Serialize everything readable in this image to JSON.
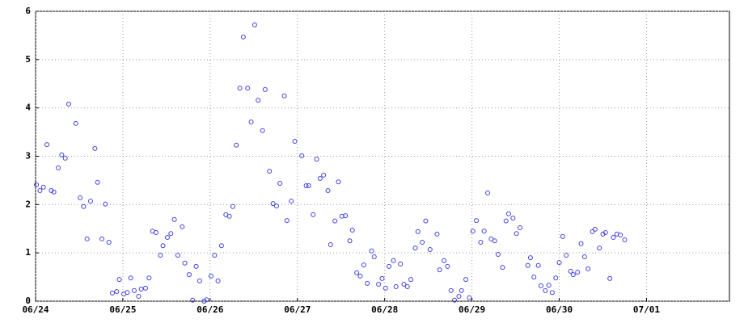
{
  "chart_data": {
    "type": "scatter",
    "x": [
      0.01,
      0.05,
      0.09,
      0.13,
      0.18,
      0.21,
      0.26,
      0.3,
      0.34,
      0.38,
      0.46,
      0.51,
      0.55,
      0.59,
      0.63,
      0.68,
      0.71,
      0.76,
      0.8,
      0.84,
      0.88,
      0.93,
      0.96,
      1.01,
      1.05,
      1.09,
      1.13,
      1.18,
      1.21,
      1.26,
      1.3,
      1.34,
      1.38,
      1.43,
      1.46,
      1.51,
      1.55,
      1.59,
      1.63,
      1.68,
      1.71,
      1.76,
      1.8,
      1.84,
      1.88,
      1.93,
      1.96,
      2.01,
      2.05,
      2.09,
      2.13,
      2.18,
      2.22,
      2.26,
      2.3,
      2.34,
      2.38,
      2.43,
      2.47,
      2.51,
      2.55,
      2.6,
      2.63,
      2.68,
      2.72,
      2.76,
      2.8,
      2.85,
      2.88,
      2.93,
      2.97,
      3.05,
      3.1,
      3.13,
      3.18,
      3.22,
      3.26,
      3.3,
      3.35,
      3.38,
      3.43,
      3.47,
      3.51,
      3.55,
      3.6,
      3.63,
      3.68,
      3.72,
      3.76,
      3.8,
      3.85,
      3.88,
      3.93,
      3.97,
      4.01,
      4.05,
      4.1,
      4.13,
      4.18,
      4.22,
      4.26,
      4.3,
      4.35,
      4.38,
      4.43,
      4.47,
      4.52,
      4.6,
      4.63,
      4.68,
      4.72,
      4.76,
      4.8,
      4.85,
      4.88,
      4.93,
      4.97,
      5.01,
      5.05,
      5.1,
      5.14,
      5.18,
      5.22,
      5.26,
      5.3,
      5.35,
      5.39,
      5.42,
      5.47,
      5.51,
      5.55,
      5.64,
      5.67,
      5.71,
      5.76,
      5.79,
      5.84,
      5.88,
      5.92,
      5.96,
      6.0,
      6.04,
      6.08,
      6.13,
      6.16,
      6.21,
      6.25,
      6.29,
      6.33,
      6.38,
      6.41,
      6.46,
      6.5,
      6.53,
      6.58,
      6.62,
      6.66,
      6.7,
      6.75
    ],
    "values": [
      2.41,
      2.29,
      2.36,
      3.24,
      2.29,
      2.26,
      2.76,
      3.03,
      2.96,
      4.08,
      3.68,
      2.14,
      1.96,
      1.29,
      2.07,
      3.16,
      2.46,
      1.29,
      2.01,
      1.22,
      0.17,
      0.2,
      0.45,
      0.15,
      0.18,
      0.48,
      0.22,
      0.1,
      0.25,
      0.27,
      0.48,
      1.45,
      1.42,
      0.95,
      1.15,
      1.32,
      1.4,
      1.69,
      0.95,
      1.54,
      0.79,
      0.55,
      0.02,
      0.72,
      0.42,
      0.0,
      0.03,
      0.52,
      0.95,
      0.42,
      1.15,
      1.79,
      1.76,
      1.96,
      3.23,
      4.41,
      5.47,
      4.41,
      3.71,
      5.72,
      4.16,
      3.53,
      4.38,
      2.69,
      2.02,
      1.97,
      2.44,
      4.25,
      1.67,
      2.07,
      3.31,
      3.01,
      2.39,
      2.39,
      1.79,
      2.94,
      2.54,
      2.61,
      2.29,
      1.17,
      1.66,
      2.47,
      1.76,
      1.77,
      1.25,
      1.47,
      0.59,
      0.52,
      0.75,
      0.37,
      1.04,
      0.92,
      0.35,
      0.47,
      0.27,
      0.72,
      0.84,
      0.3,
      0.77,
      0.35,
      0.3,
      0.45,
      1.1,
      1.44,
      1.22,
      1.66,
      1.07,
      1.39,
      0.65,
      0.84,
      0.72,
      0.22,
      0.02,
      0.1,
      0.22,
      0.45,
      0.07,
      1.45,
      1.67,
      1.22,
      1.45,
      2.24,
      1.29,
      1.25,
      0.97,
      0.7,
      1.66,
      1.81,
      1.72,
      1.4,
      1.52,
      0.74,
      0.9,
      0.5,
      0.74,
      0.32,
      0.22,
      0.33,
      0.18,
      0.48,
      0.8,
      1.34,
      0.95,
      0.62,
      0.55,
      0.6,
      1.19,
      0.92,
      0.67,
      1.44,
      1.49,
      1.1,
      1.39,
      1.42,
      0.47,
      1.32,
      1.39,
      1.37,
      1.27
    ],
    "color": "#4040e0",
    "xlim": [
      0,
      7.95
    ],
    "xticks": [
      {
        "value": 0,
        "label": "06/24"
      },
      {
        "value": 1,
        "label": "06/25"
      },
      {
        "value": 2,
        "label": "06/26"
      },
      {
        "value": 3,
        "label": "06/27"
      },
      {
        "value": 4,
        "label": "06/28"
      },
      {
        "value": 5,
        "label": "06/29"
      },
      {
        "value": 6,
        "label": "06/30"
      },
      {
        "value": 7,
        "label": "07/01"
      }
    ],
    "ylim": [
      0,
      6
    ],
    "yticks": [
      0,
      1,
      2,
      3,
      4,
      5,
      6
    ],
    "grid": true
  }
}
